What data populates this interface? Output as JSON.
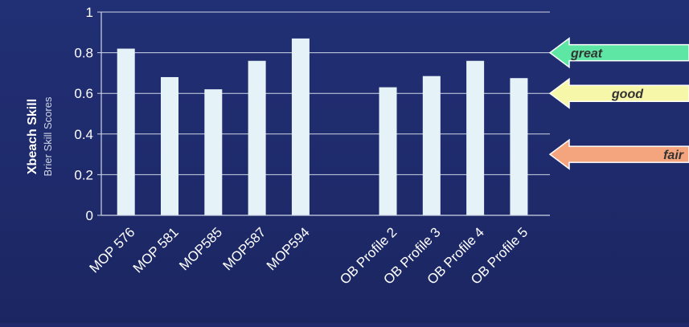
{
  "chart_data": {
    "type": "bar",
    "ylabel": "Xbeach Skill",
    "ylabel_sub": "Brier Skill Scores",
    "ylim": [
      0,
      1
    ],
    "yticks": [
      "0",
      "0.2",
      "0.4",
      "0.6",
      "0.8",
      "1"
    ],
    "grid": true,
    "categories": [
      "MOP 576",
      "MOP 581",
      "MOP585",
      "MOP587",
      "MOP594",
      "",
      "OB Profile 2",
      "OB Profile 3",
      "OB Profile 4",
      "OB Profile 5"
    ],
    "values": [
      0.82,
      0.68,
      0.62,
      0.76,
      0.87,
      null,
      0.63,
      0.685,
      0.76,
      0.675
    ],
    "bar_color": "#e5f2f7",
    "annotations": [
      {
        "label": "great",
        "y": 0.8,
        "color": "#5ee6a4"
      },
      {
        "label": "good",
        "y": 0.6,
        "color": "#f6f7a8"
      },
      {
        "label": "fair",
        "y": 0.3,
        "color": "#f4a57e"
      }
    ]
  },
  "colors": {
    "background": "#1f2c6e",
    "axis": "#cfd6e6",
    "text": "#ffffff",
    "annotation_text": "#333333"
  }
}
